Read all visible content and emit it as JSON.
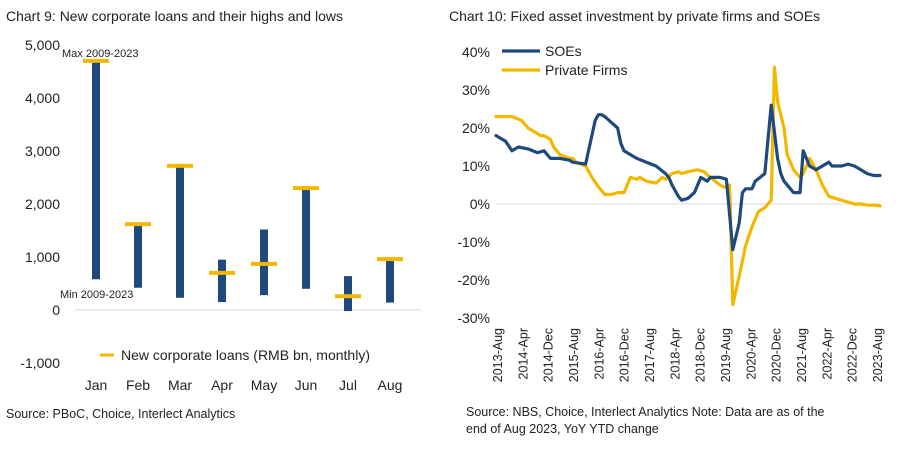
{
  "chart_data": [
    {
      "type": "bar",
      "title": "Chart 9: New corporate loans and their highs and lows",
      "categories": [
        "Jan",
        "Feb",
        "Mar",
        "Apr",
        "May",
        "Jun",
        "Jul",
        "Aug"
      ],
      "series": [
        {
          "name": "Max 2009-2023",
          "values": [
            4700,
            1630,
            2720,
            950,
            1520,
            2310,
            640,
            960
          ]
        },
        {
          "name": "Min 2009-2023",
          "values": [
            580,
            420,
            230,
            150,
            280,
            400,
            -20,
            140
          ]
        },
        {
          "name": "New corporate loans (RMB bn, monthly)",
          "values": [
            4700,
            1620,
            2720,
            700,
            870,
            2300,
            260,
            960
          ]
        }
      ],
      "ylim": [
        -1000,
        5000
      ],
      "yticks": [
        -1000,
        0,
        1000,
        2000,
        3000,
        4000,
        5000
      ],
      "ytick_labels": [
        "-1,000",
        "0",
        "1,000",
        "2,000",
        "3,000",
        "4,000",
        "5,000"
      ],
      "annotations": {
        "max_label": "Max 2009-2023",
        "min_label": "Min 2009-2023"
      },
      "legend_label": "New corporate loans (RMB bn, monthly)",
      "source": "Source: PBoC, Choice, Interlect Analytics",
      "colors": {
        "range": "#1f497d",
        "marker": "#f2b800"
      }
    },
    {
      "type": "line",
      "title": "Chart 10: Fixed asset investment by private firms and SOEs",
      "x_labels": [
        "2013-Aug",
        "2014-Apr",
        "2014-Dec",
        "2015-Aug",
        "2016-Apr",
        "2016-Dec",
        "2017-Aug",
        "2018-Apr",
        "2018-Dec",
        "2019-Aug",
        "2020-Apr",
        "2020-Dec",
        "2021-Aug",
        "2022-Apr",
        "2022-Dec",
        "2023-Aug"
      ],
      "series": [
        {
          "name": "SOEs",
          "color": "#1f497d",
          "x": [
            0,
            3,
            5,
            7,
            10,
            13,
            15,
            17,
            20,
            23,
            24,
            28,
            31,
            32,
            33,
            34,
            36,
            38,
            39,
            40,
            42,
            44,
            47,
            50,
            53,
            54,
            55,
            57,
            58,
            60,
            62,
            63,
            64,
            65,
            66,
            67,
            68,
            70,
            72,
            74,
            76,
            77,
            78,
            80,
            81,
            84,
            86,
            88,
            89,
            90,
            92,
            93,
            95,
            96,
            98,
            100,
            102,
            104,
            105,
            106,
            108,
            110,
            112,
            114,
            116,
            118,
            119,
            120
          ],
          "y": [
            18,
            16.5,
            14,
            15,
            14.5,
            13.5,
            14,
            12,
            12,
            11.5,
            11,
            10.5,
            22,
            23.5,
            23.5,
            23,
            21.5,
            20,
            16,
            14,
            13,
            12,
            11,
            10,
            8,
            7,
            5,
            2,
            1,
            1.5,
            3,
            5,
            7,
            6.5,
            6,
            7,
            7,
            7,
            6.5,
            -12,
            -5,
            3,
            4,
            4,
            6,
            8,
            26,
            12,
            8,
            6,
            4,
            3,
            3,
            14,
            10,
            9,
            10,
            11,
            10,
            10,
            10,
            10.5,
            10,
            9,
            8,
            7.5,
            7.5,
            7.5
          ]
        },
        {
          "name": "Private Firms",
          "color": "#f2b800",
          "x": [
            0,
            3,
            5,
            8,
            10,
            12,
            14,
            15,
            16,
            17,
            18,
            20,
            23,
            24,
            25,
            28,
            30,
            32,
            34,
            36,
            38,
            40,
            42,
            44,
            45,
            47,
            50,
            52,
            53,
            55,
            57,
            58,
            60,
            63,
            65,
            67,
            70,
            71,
            72,
            73,
            74,
            76,
            78,
            80,
            81,
            82,
            84,
            86,
            87,
            88,
            90,
            91,
            92,
            93,
            94,
            95,
            96,
            98,
            100,
            102,
            104,
            106,
            108,
            110,
            112,
            114,
            116,
            118,
            120
          ],
          "y": [
            23,
            23,
            23,
            22,
            20,
            19,
            18,
            18,
            17.5,
            17,
            15,
            13,
            12,
            12,
            11,
            10,
            7,
            4.5,
            2.5,
            2.5,
            3,
            3,
            7,
            6.5,
            7,
            6,
            5.5,
            7,
            6.5,
            8,
            8.5,
            8,
            8.5,
            9,
            8.5,
            7,
            5,
            4.5,
            4.5,
            5,
            -26.5,
            -19,
            -11,
            -6,
            -4,
            -2,
            -1,
            1,
            36,
            27,
            20,
            13,
            11,
            9,
            8,
            7,
            8,
            12,
            9,
            5,
            2,
            1.5,
            1,
            0.5,
            0,
            0,
            -0.3,
            -0.3,
            -0.5
          ]
        }
      ],
      "ylim": [
        -30,
        40
      ],
      "yticks": [
        -30,
        -20,
        -10,
        0,
        10,
        20,
        30,
        40
      ],
      "ytick_labels": [
        "-30%",
        "-20%",
        "-10%",
        "0%",
        "10%",
        "20%",
        "30%",
        "40%"
      ],
      "source_line1": "Source: NBS, Choice, Interlect Analytics  Note: Data are as of the",
      "source_line2": "end of Aug 2023, YoY YTD change"
    }
  ]
}
